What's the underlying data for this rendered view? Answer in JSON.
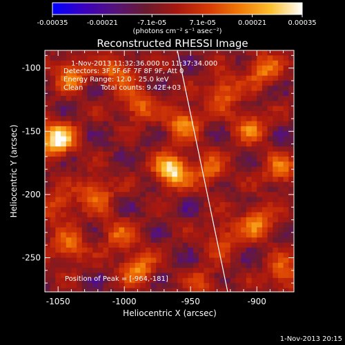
{
  "colorbar": {
    "ticks": [
      -0.00035,
      -0.00021,
      -7.1e-05,
      7.1e-05,
      0.00021,
      0.00035
    ],
    "tick_labels": [
      "-0.00035",
      "-0.00021",
      "-7.1e-05",
      "7.1e-05",
      "0.00021",
      "0.00035"
    ],
    "range": [
      -0.00035,
      0.00035
    ],
    "unit_label": "(photons cm⁻² s⁻¹ asec⁻²)"
  },
  "annotations": {
    "time_range": "1-Nov-2013 11:32:36.000 to 11:37:34.000",
    "detectors": "Detectors: 3F 5F 6F 7F 8F 9F, Att 0",
    "energy": "Energy Range: 12.0 - 25.0 keV",
    "algorithm": "Clean",
    "total_counts": "Total counts: 9.42E+03",
    "peak_position": "Position of Peak = [-964,-181]"
  },
  "footer": {
    "timestamp": "1-Nov-2013 20:15"
  },
  "palette": {
    "stops": [
      "#0000ff",
      "#3a00c0",
      "#55127a",
      "#6a1a2e",
      "#a8180f",
      "#d63a05",
      "#f27a06",
      "#fbc030",
      "#ffffff"
    ],
    "limb_line": "#ffffff"
  },
  "chart_data": {
    "type": "heatmap",
    "title": "Reconstructed RHESSI Image",
    "xlabel": "Heliocentric X (arcsec)",
    "ylabel": "Heliocentric Y (arcsec)",
    "xlim": [
      -1060,
      -872
    ],
    "ylim": [
      -277,
      -86
    ],
    "x_ticks": [
      -1050,
      -1000,
      -950,
      -900
    ],
    "y_ticks": [
      -100,
      -150,
      -200,
      -250
    ],
    "grid_step_arcsec": 4,
    "limb_line": [
      [
        -960,
        -86
      ],
      [
        -922,
        -277
      ]
    ],
    "sources": [
      {
        "x": -1051,
        "y": -156,
        "peak": 1.0
      },
      {
        "x": -964,
        "y": -181,
        "peak": 0.95
      },
      {
        "x": -1040,
        "y": -105,
        "peak": 0.55
      },
      {
        "x": -1005,
        "y": -103,
        "peak": 0.5
      },
      {
        "x": -955,
        "y": -143,
        "peak": 0.62
      },
      {
        "x": -990,
        "y": -130,
        "peak": 0.5
      },
      {
        "x": -1022,
        "y": -199,
        "peak": 0.52
      },
      {
        "x": -990,
        "y": -258,
        "peak": 0.6
      },
      {
        "x": -1042,
        "y": -242,
        "peak": 0.52
      },
      {
        "x": -1005,
        "y": -232,
        "peak": 0.42
      },
      {
        "x": -895,
        "y": -101,
        "peak": 0.55
      },
      {
        "x": -905,
        "y": -147,
        "peak": 0.5
      },
      {
        "x": -925,
        "y": -119,
        "peak": 0.52
      },
      {
        "x": -882,
        "y": -181,
        "peak": 0.5
      },
      {
        "x": -900,
        "y": -222,
        "peak": 0.57
      },
      {
        "x": -925,
        "y": -235,
        "peak": 0.42
      },
      {
        "x": -880,
        "y": -263,
        "peak": 0.52
      },
      {
        "x": -940,
        "y": -271,
        "peak": 0.35
      },
      {
        "x": -935,
        "y": -181,
        "peak": 0.45
      },
      {
        "x": -1050,
        "y": -209,
        "peak": 0.4
      }
    ]
  }
}
